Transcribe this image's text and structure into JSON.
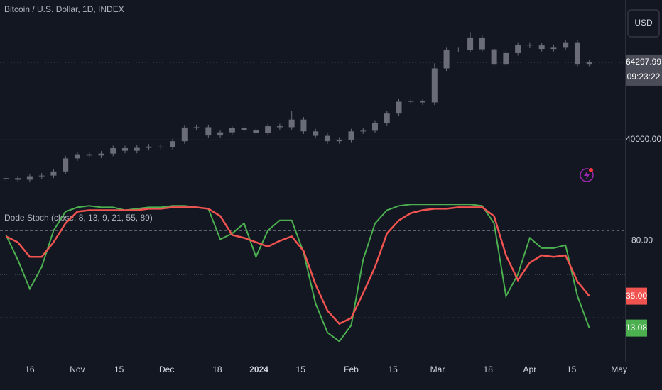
{
  "chart_data": [
    {
      "type": "candlestick",
      "title": "Bitcoin / U.S. Dollar, 1D, INDEX",
      "currency": "USD",
      "countdown": "09:23:22",
      "color": "#6a6d78",
      "x": [
        7,
        11,
        15,
        19,
        23,
        27,
        31,
        35,
        39,
        43,
        47,
        51,
        55,
        59,
        63,
        67,
        71,
        75,
        79,
        83,
        87,
        91,
        95,
        99,
        103,
        107,
        111,
        115,
        119,
        123,
        127,
        131,
        135,
        139,
        143,
        147,
        151,
        155,
        159,
        163,
        167,
        171,
        175,
        179,
        183,
        187,
        191,
        195,
        199,
        203
      ],
      "open": [
        27600,
        27900,
        27400,
        28500,
        28700,
        30000,
        34100,
        35400,
        35000,
        35600,
        37300,
        36500,
        37400,
        37800,
        37700,
        39500,
        43800,
        43900,
        41300,
        42300,
        43600,
        43000,
        42200,
        44200,
        43900,
        46300,
        42600,
        41200,
        39500,
        40000,
        42600,
        42800,
        45300,
        48200,
        51900,
        52100,
        51700,
        62400,
        68300,
        68200,
        72100,
        68400,
        63800,
        67200,
        69800,
        69600,
        68500,
        69100,
        70600,
        63800
      ],
      "high": [
        28700,
        28700,
        29300,
        29500,
        30800,
        34900,
        36200,
        36200,
        36400,
        38100,
        38100,
        38200,
        38600,
        38600,
        40300,
        44600,
        44700,
        44700,
        43100,
        44400,
        44400,
        43800,
        45000,
        45000,
        48900,
        47100,
        43400,
        42000,
        40800,
        43400,
        43600,
        46100,
        49000,
        52700,
        52900,
        52900,
        64000,
        69100,
        69100,
        73800,
        72900,
        69200,
        68000,
        70600,
        70600,
        70400,
        69900,
        71400,
        71400,
        65100
      ],
      "low": [
        26800,
        26600,
        26600,
        27700,
        27900,
        29200,
        33300,
        34200,
        34200,
        34800,
        35700,
        35700,
        36600,
        36900,
        36900,
        38700,
        43000,
        40500,
        40500,
        41500,
        42200,
        41400,
        41400,
        43100,
        43100,
        41800,
        40400,
        38700,
        38700,
        39200,
        41800,
        42000,
        44500,
        47400,
        51100,
        50900,
        50900,
        61600,
        67400,
        67400,
        67600,
        63000,
        63000,
        66400,
        68800,
        67700,
        67700,
        68300,
        63000,
        63000
      ],
      "close": [
        27900,
        27400,
        28500,
        28700,
        30000,
        34100,
        35400,
        35000,
        35600,
        37300,
        36500,
        37400,
        37800,
        37700,
        39500,
        43800,
        43900,
        41300,
        42300,
        43600,
        43000,
        42200,
        44200,
        43900,
        46300,
        42600,
        41200,
        39500,
        40000,
        42600,
        42800,
        45300,
        48200,
        51900,
        52100,
        51700,
        62400,
        68300,
        68200,
        72100,
        68400,
        63800,
        67200,
        69800,
        69600,
        68500,
        69100,
        70600,
        63800,
        64297.99
      ],
      "xlim": [
        5,
        215
      ],
      "ylim": [
        22600,
        83900
      ],
      "yticks": [
        {
          "value": 40000,
          "label": "40000.00"
        }
      ]
    },
    {
      "type": "line",
      "title": "Dode Stoch (close, 8, 13, 9, 21, 55, 89)",
      "series": [
        {
          "color": "#4caf50",
          "values": [
            77,
            60,
            40,
            55,
            80,
            93,
            96,
            97,
            96,
            96,
            94,
            95,
            96,
            96,
            97,
            97,
            96,
            95,
            74,
            78,
            85,
            62,
            80,
            87,
            87,
            65,
            30,
            10,
            4,
            15,
            60,
            85,
            94,
            97,
            98,
            98,
            98,
            98,
            98,
            98,
            97,
            85,
            35,
            50,
            75,
            68,
            68,
            70,
            35,
            13.08
          ]
        },
        {
          "color": "#f05350",
          "values": [
            76,
            72,
            62,
            62,
            72,
            85,
            93,
            94,
            94,
            94,
            94,
            94,
            95,
            95,
            96,
            96,
            96,
            95,
            90,
            77,
            75,
            72,
            69,
            73,
            76,
            66,
            43,
            25,
            16,
            20,
            37,
            55,
            78,
            87,
            92,
            94,
            95,
            95,
            96,
            96,
            96,
            90,
            63,
            46,
            58,
            63,
            62,
            63,
            45,
            35
          ],
          "value_labels": [
            null,
            null,
            null,
            null,
            null,
            null,
            null,
            null,
            null,
            null,
            null,
            null,
            null,
            null,
            null,
            null,
            null,
            null,
            null,
            null,
            null,
            null,
            null,
            null,
            null,
            null,
            null,
            null,
            null,
            null,
            null,
            null,
            null,
            null,
            null,
            null,
            null,
            null,
            null,
            null,
            null,
            null,
            null,
            null,
            null,
            null,
            null,
            null,
            null,
            "35.00"
          ]
        }
      ],
      "xlim": [
        5,
        215
      ],
      "ylim": [
        -10,
        103
      ],
      "yticks": [
        {
          "value": 80,
          "label": "80.00"
        }
      ],
      "levels": [
        80,
        50,
        20
      ],
      "xticks": [
        {
          "value": 15,
          "label": "16"
        },
        {
          "value": 31,
          "label": "Nov"
        },
        {
          "value": 45,
          "label": "15"
        },
        {
          "value": 61,
          "label": "Dec"
        },
        {
          "value": 78,
          "label": "18"
        },
        {
          "value": 92,
          "label": "2024"
        },
        {
          "value": 106,
          "label": "15"
        },
        {
          "value": 123,
          "label": "Feb"
        },
        {
          "value": 137,
          "label": "15"
        },
        {
          "value": 152,
          "label": "Mar"
        },
        {
          "value": 169,
          "label": "18"
        },
        {
          "value": 183,
          "label": "Apr"
        },
        {
          "value": 197,
          "label": "15"
        },
        {
          "value": 213,
          "label": "May"
        }
      ]
    }
  ]
}
